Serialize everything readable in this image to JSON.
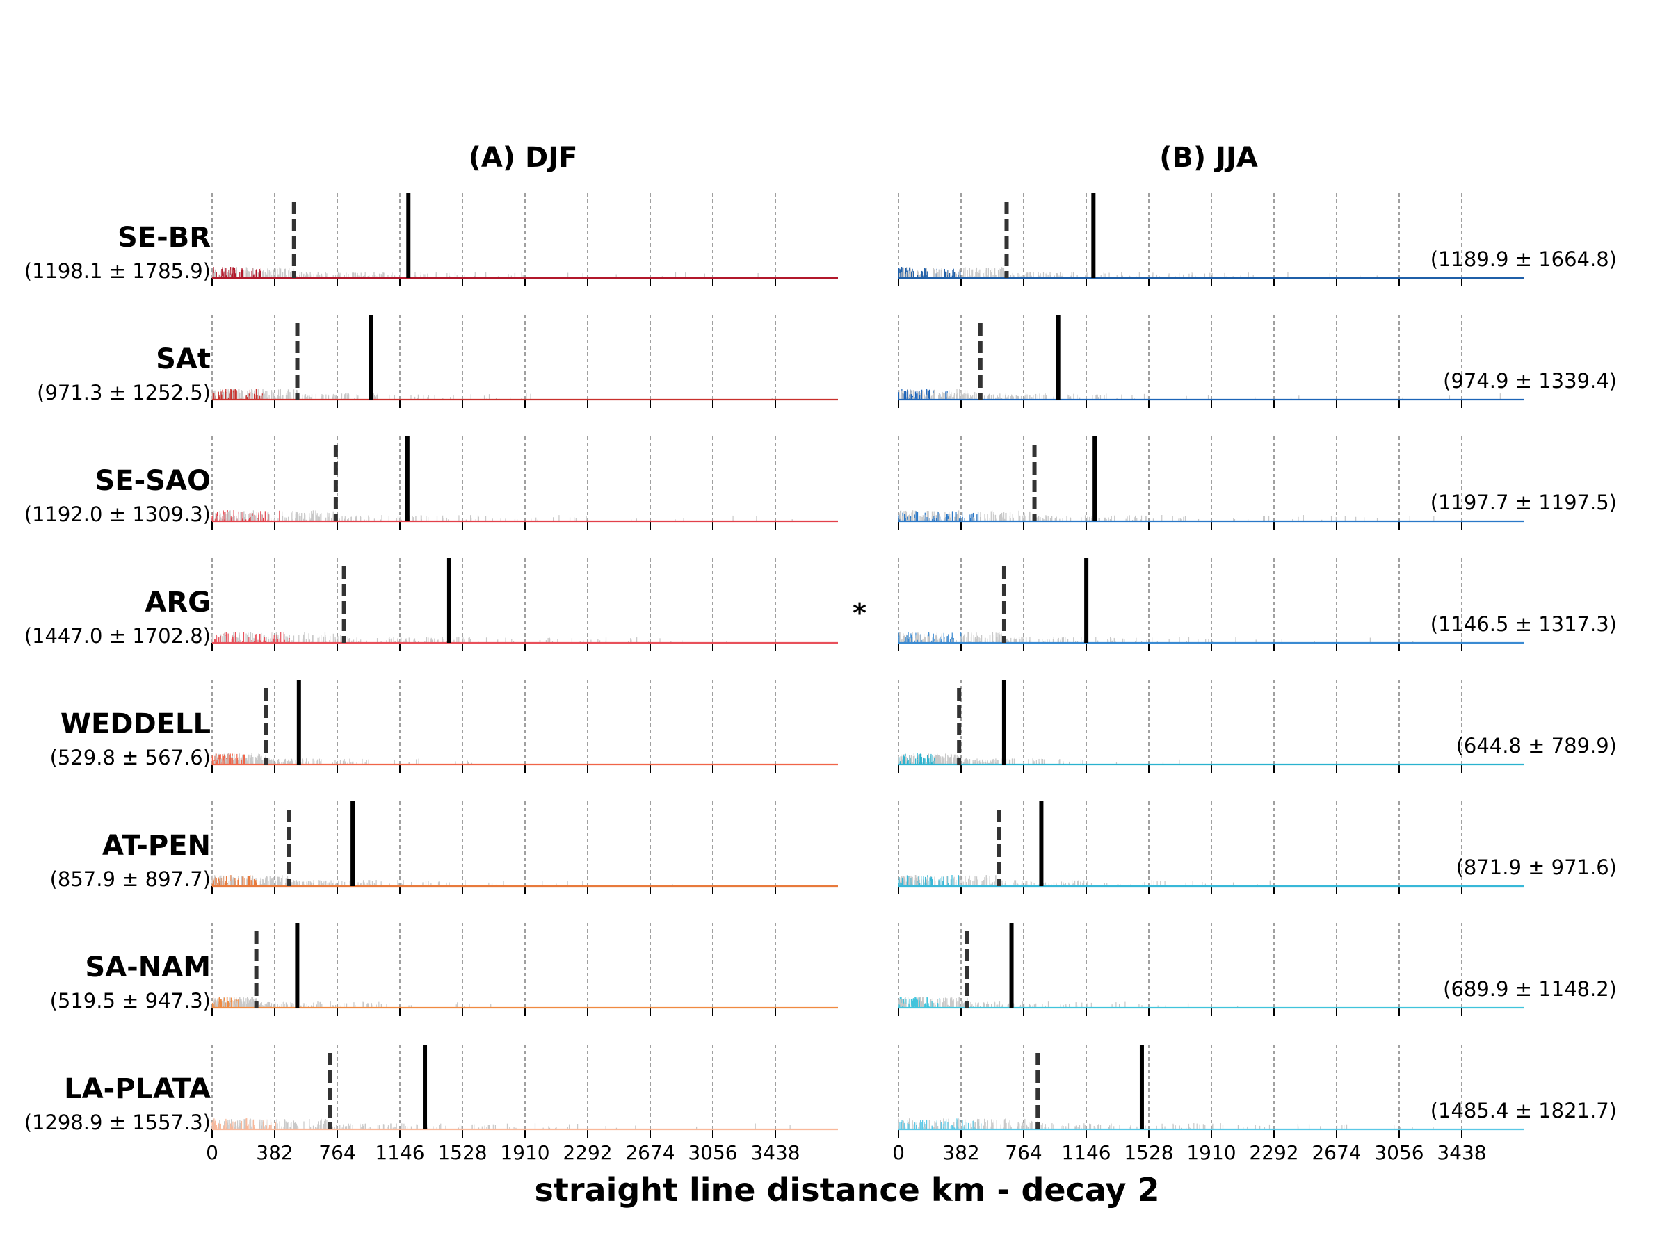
{
  "figure": {
    "xlabel": "straight line distance km - decay 2",
    "asterisk": "*"
  },
  "chart_data": [
    {
      "type": "histogram-with-markers",
      "panel": "A",
      "title": "(A) DJF",
      "xlabel": "straight line distance km - decay 2",
      "xticks": [
        0,
        382,
        764,
        1146,
        1528,
        1910,
        2292,
        2674,
        3056,
        3438
      ],
      "xlim": [
        0,
        3820
      ],
      "grid": "vertical dashed gridlines at each tick",
      "rows": [
        {
          "region": "SE-BR",
          "stats": "(1198.1 ± 1785.9)",
          "mean": 1198.1,
          "median": 500,
          "color": "#b2182b"
        },
        {
          "region": "SAt",
          "stats": "(971.3 ± 1252.5)",
          "mean": 971.3,
          "median": 520,
          "color": "#c9302c"
        },
        {
          "region": "SE-SAO",
          "stats": "(1192.0 ± 1309.3)",
          "mean": 1192.0,
          "median": 755,
          "color": "#e2404a"
        },
        {
          "region": "ARG",
          "stats": "(1447.0 ± 1702.8)",
          "mean": 1447.0,
          "median": 805,
          "color": "#e8505a"
        },
        {
          "region": "WEDDELL",
          "stats": "(529.8 ± 567.6)",
          "mean": 529.8,
          "median": 330,
          "color": "#f06448"
        },
        {
          "region": "AT-PEN",
          "stats": "(857.9 ± 897.7)",
          "mean": 857.9,
          "median": 470,
          "color": "#e87a3c"
        },
        {
          "region": "SA-NAM",
          "stats": "(519.5 ± 947.3)",
          "mean": 519.5,
          "median": 270,
          "color": "#f08a40"
        },
        {
          "region": "LA-PLATA",
          "stats": "(1298.9 ± 1557.3)",
          "mean": 1298.9,
          "median": 720,
          "color": "#f9b89a"
        }
      ]
    },
    {
      "type": "histogram-with-markers",
      "panel": "B",
      "title": "(B) JJA",
      "xlabel": "straight line distance km - decay 2",
      "xticks": [
        0,
        382,
        764,
        1146,
        1528,
        1910,
        2292,
        2674,
        3056,
        3438
      ],
      "xlim": [
        0,
        3820
      ],
      "grid": "vertical dashed gridlines at each tick",
      "rows": [
        {
          "region": "SE-BR",
          "stats": "(1189.9 ± 1664.8)",
          "mean": 1189.9,
          "median": 660,
          "color": "#1f5fa8"
        },
        {
          "region": "SAt",
          "stats": "(974.9 ± 1339.4)",
          "mean": 974.9,
          "median": 500,
          "color": "#1c64b8"
        },
        {
          "region": "SE-SAO",
          "stats": "(1197.7 ± 1197.5)",
          "mean": 1197.7,
          "median": 830,
          "color": "#2a78c8"
        },
        {
          "region": "ARG",
          "stats": "(1146.5 ± 1317.3)",
          "mean": 1146.5,
          "median": 645,
          "color": "#3a8ad2"
        },
        {
          "region": "WEDDELL",
          "stats": "(644.8 ± 789.9)",
          "mean": 644.8,
          "median": 370,
          "color": "#2ab2cf"
        },
        {
          "region": "AT-PEN",
          "stats": "(871.9 ± 971.6)",
          "mean": 871.9,
          "median": 615,
          "color": "#38b8d8"
        },
        {
          "region": "SA-NAM",
          "stats": "(689.9 ± 1148.2)",
          "mean": 689.9,
          "median": 420,
          "color": "#40c4dc"
        },
        {
          "region": "LA-PLATA",
          "stats": "(1485.4 ± 1821.7)",
          "mean": 1485.4,
          "median": 850,
          "color": "#5ac8e6"
        }
      ]
    }
  ]
}
